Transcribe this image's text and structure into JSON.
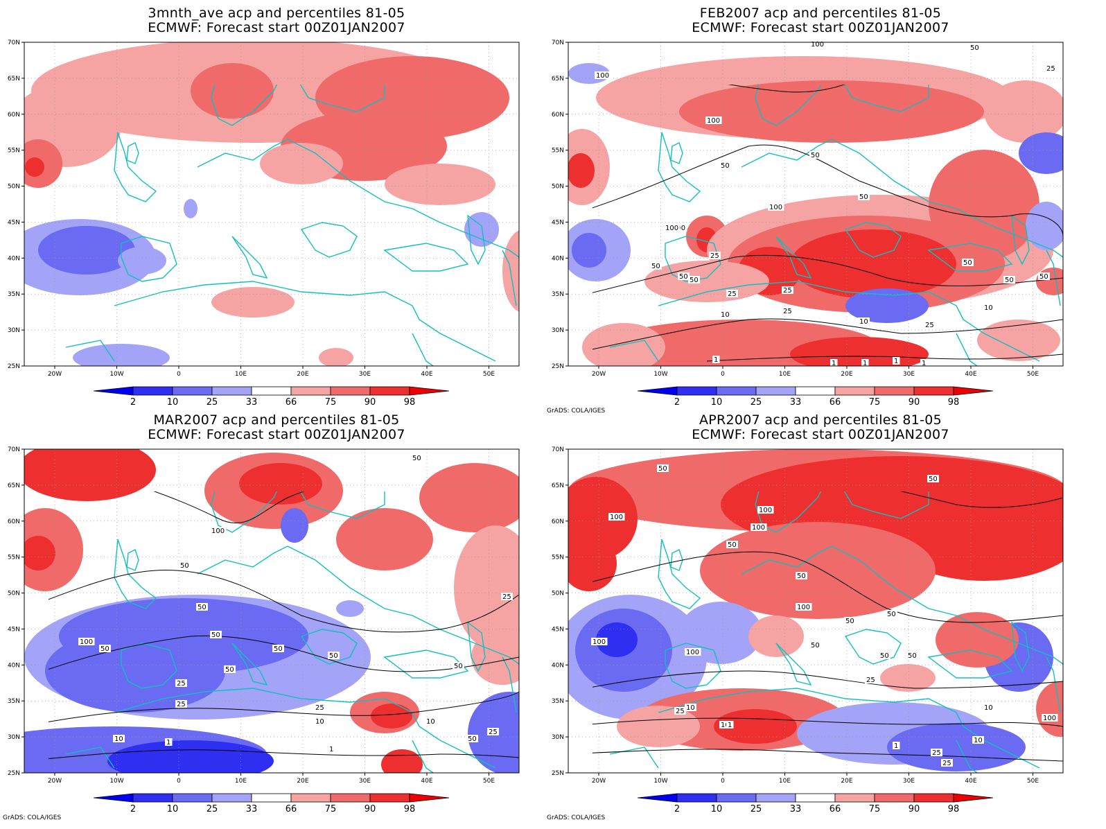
{
  "credit": "GrADS: COLA/IGES",
  "lon_ticks": [
    "20W",
    "10W",
    "0",
    "10E",
    "20E",
    "30E",
    "40E",
    "50E"
  ],
  "lat_ticks": [
    "70N",
    "65N",
    "60N",
    "55N",
    "50N",
    "45N",
    "40N",
    "35N",
    "30N",
    "25N"
  ],
  "colorbar": {
    "labels": [
      "2",
      "10",
      "25",
      "33",
      "66",
      "75",
      "90",
      "98"
    ],
    "colors": {
      "lt2": "#0000f0",
      "c2_10": "#2f2ff2",
      "c10_25": "#6a6af3",
      "c25_33": "#a3a3f7",
      "c33_66": "#ffffff",
      "c66_75": "#f5a3a3",
      "c75_90": "#f06a6a",
      "c90_98": "#ee2f2f",
      "gt98": "#ee0000"
    }
  },
  "coast_color": "#10c0c0",
  "panels": [
    {
      "title1": "3mnth_ave acp and percentiles 81-05",
      "title2": "ECMWF: Forecast start 00Z01JAN2007",
      "contour_labels": [],
      "show_credit": false
    },
    {
      "title1": "FEB2007 acp and percentiles 81-05",
      "title2": "ECMWF: Forecast start 00Z01JAN2007",
      "contour_labels": [
        "100",
        "50",
        "25",
        "100",
        "100",
        "50",
        "50",
        "100",
        "50",
        "100",
        "100",
        "25",
        "50",
        "50",
        "50",
        "25",
        "50",
        "50",
        "50",
        "10",
        "25",
        "25",
        "10",
        "10",
        "25",
        "1",
        "1",
        "1",
        "1",
        "1"
      ],
      "show_credit": true
    },
    {
      "title1": "MAR2007 acp and percentiles 81-05",
      "title2": "ECMWF: Forecast start 00Z01JAN2007",
      "contour_labels": [
        "50",
        "100",
        "50",
        "100",
        "25",
        "50",
        "50",
        "50",
        "50",
        "50",
        "50",
        "50",
        "25",
        "25",
        "25",
        "10",
        "10",
        "1",
        "1",
        "50",
        "10",
        "25"
      ],
      "show_credit": true
    },
    {
      "title1": "APR2007 acp and percentiles 81-05",
      "title2": "ECMWF: Forecast start 00Z01JAN2007",
      "contour_labels": [
        "50",
        "50",
        "100",
        "100",
        "100",
        "50",
        "50",
        "100",
        "50",
        "100",
        "100",
        "50",
        "50",
        "50",
        "25",
        "50",
        "25",
        "10",
        "10",
        "1",
        "1",
        "25",
        "10",
        "100",
        "10",
        "25"
      ],
      "show_credit": true
    }
  ]
}
